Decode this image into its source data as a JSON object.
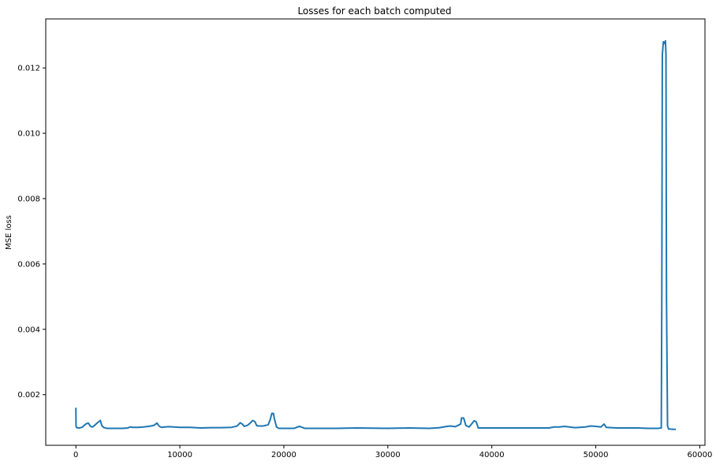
{
  "chart_data": {
    "type": "line",
    "title": "Losses for each batch computed",
    "xlabel": "",
    "ylabel": "MSE loss",
    "xlim": [
      -2900,
      60500
    ],
    "ylim": [
      0.00045,
      0.0135
    ],
    "grid": false,
    "legend": "none",
    "line_color": "#1f77b4",
    "xticks": [
      0,
      10000,
      20000,
      30000,
      40000,
      50000,
      60000
    ],
    "yticks": [
      0.002,
      0.004,
      0.006,
      0.008,
      0.01,
      0.012
    ],
    "xtick_labels": [
      "0",
      "10000",
      "20000",
      "30000",
      "40000",
      "50000",
      "60000"
    ],
    "ytick_labels": [
      "0.002",
      "0.004",
      "0.006",
      "0.008",
      "0.010",
      "0.012"
    ],
    "series": [
      {
        "x": [
          0,
          15,
          80,
          300,
          600,
          800,
          1000,
          1200,
          1400,
          1600,
          1800,
          2000,
          2200,
          2350,
          2500,
          2700,
          3000,
          3500,
          4000,
          4500,
          5000,
          5200,
          5500,
          6000,
          6500,
          7000,
          7500,
          7800,
          8000,
          8200,
          8500,
          9000,
          10000,
          11000,
          12000,
          13000,
          14000,
          15000,
          15500,
          15800,
          16000,
          16200,
          16500,
          16800,
          17000,
          17200,
          17400,
          17600,
          18000,
          18500,
          18700,
          18850,
          19000,
          19100,
          19300,
          19500,
          20000,
          21000,
          21500,
          22000,
          23000,
          25000,
          27000,
          30000,
          32000,
          34000,
          35000,
          35500,
          36000,
          36500,
          37000,
          37100,
          37300,
          37500,
          37800,
          38000,
          38300,
          38500,
          38700,
          39000,
          40000,
          42000,
          44000,
          45500,
          46000,
          46500,
          47000,
          48000,
          49000,
          49500,
          50000,
          50500,
          50800,
          51000,
          51500,
          52000,
          53000,
          54000,
          55000,
          56000,
          56300,
          56350,
          56400,
          56500,
          56600,
          56700,
          56750,
          56800,
          56900,
          57000,
          57500,
          57700
        ],
        "y": [
          0.0016,
          0.00103,
          0.00099,
          0.00098,
          0.001,
          0.00106,
          0.00111,
          0.00113,
          0.00103,
          0.00101,
          0.00106,
          0.00112,
          0.00117,
          0.00121,
          0.00105,
          0.00099,
          0.00097,
          0.00097,
          0.00097,
          0.00097,
          0.00098,
          0.00101,
          0.001,
          0.001,
          0.00101,
          0.00103,
          0.00106,
          0.00113,
          0.00104,
          0.001,
          0.00101,
          0.00102,
          0.001,
          0.001,
          0.00098,
          0.00099,
          0.00099,
          0.001,
          0.00104,
          0.00114,
          0.0011,
          0.00103,
          0.00106,
          0.00114,
          0.00121,
          0.00118,
          0.00105,
          0.00104,
          0.00104,
          0.00108,
          0.00125,
          0.00143,
          0.00142,
          0.00125,
          0.00101,
          0.00097,
          0.00097,
          0.00097,
          0.00103,
          0.00097,
          0.00097,
          0.00097,
          0.00098,
          0.00097,
          0.00098,
          0.00097,
          0.00099,
          0.00102,
          0.00104,
          0.00102,
          0.0011,
          0.00129,
          0.00128,
          0.00106,
          0.00101,
          0.00108,
          0.0012,
          0.00117,
          0.00098,
          0.00098,
          0.00098,
          0.00098,
          0.00098,
          0.00098,
          0.00101,
          0.00101,
          0.00103,
          0.00099,
          0.00101,
          0.00104,
          0.00103,
          0.00101,
          0.0011,
          0.001,
          0.00099,
          0.00098,
          0.00098,
          0.00098,
          0.00097,
          0.00097,
          0.00098,
          0.005,
          0.0124,
          0.0128,
          0.01275,
          0.01283,
          0.0124,
          0.005,
          0.00105,
          0.00095,
          0.00094,
          0.00094
        ]
      }
    ]
  }
}
